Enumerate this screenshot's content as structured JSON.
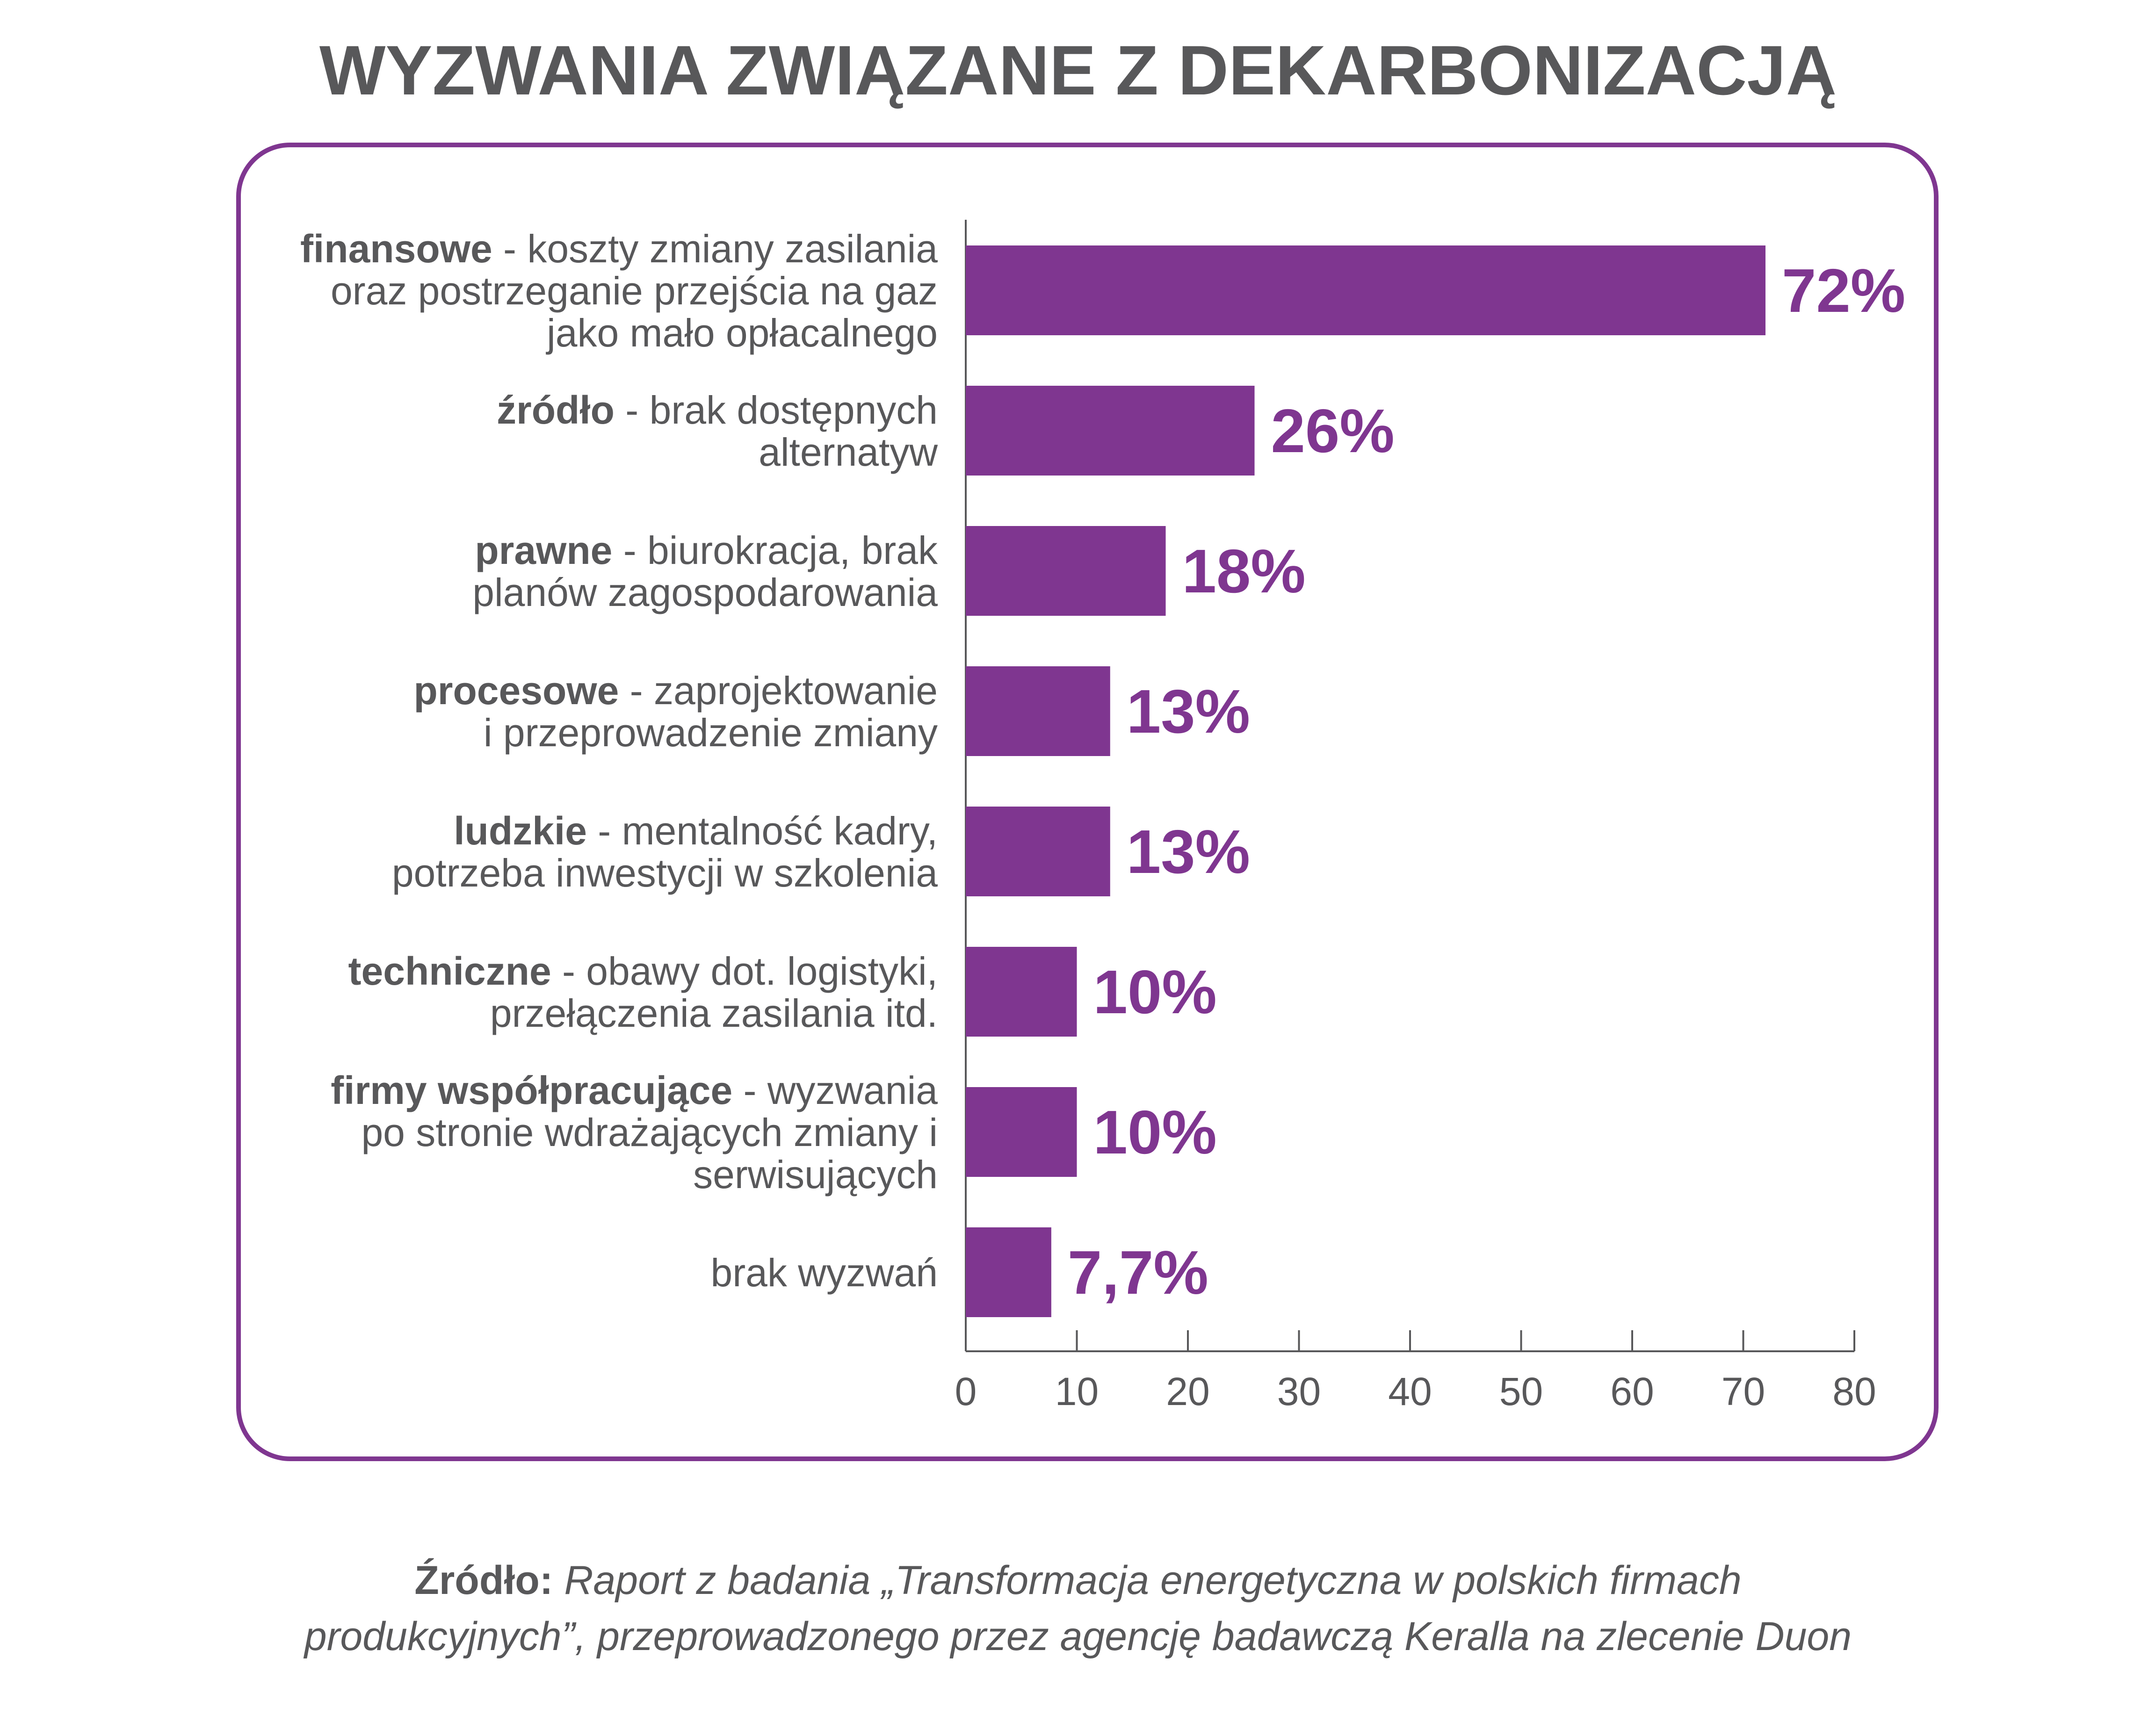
{
  "title": "WYZWANIA ZWIĄZANE Z DEKARBONIZACJĄ",
  "source": {
    "label": "Źródło:",
    "line1": "Raport z badania „Transformacja energetyczna w polskich firmach",
    "line2": "produkcyjnych”, przeprowadzonego przez agencję badawczą Keralla na zlecenie Duon"
  },
  "colors": {
    "bar": "#7f3690",
    "frame": "#7f3690",
    "text": "#58585a",
    "axis": "#58585a"
  },
  "chart_data": {
    "type": "bar",
    "orientation": "horizontal",
    "categories": [
      {
        "bold": "finansowe",
        "rest": " - koszty zmiany zasilania",
        "lines": [
          "oraz postrzeganie przejścia na gaz",
          "jako mało opłacalnego"
        ]
      },
      {
        "bold": "źródło",
        "rest": " - brak dostępnych",
        "lines": [
          "alternatyw"
        ]
      },
      {
        "bold": "prawne",
        "rest": " - biurokracja, brak",
        "lines": [
          "planów zagospodarowania"
        ]
      },
      {
        "bold": "procesowe",
        "rest": " - zaprojektowanie",
        "lines": [
          "i przeprowadzenie zmiany"
        ]
      },
      {
        "bold": "ludzkie",
        "rest": " - mentalność kadry,",
        "lines": [
          "potrzeba inwestycji w szkolenia"
        ]
      },
      {
        "bold": "techniczne",
        "rest": " - obawy dot. logistyki,",
        "lines": [
          "przełączenia zasilania itd."
        ]
      },
      {
        "bold": "firmy współpracujące",
        "rest": " - wyzwania",
        "lines": [
          "po stronie wdrażających zmiany i",
          "serwisujących"
        ]
      },
      {
        "bold": "",
        "rest": "brak wyzwań",
        "lines": []
      }
    ],
    "values": [
      72,
      26,
      18,
      13,
      13,
      10,
      10,
      7.7
    ],
    "value_labels": [
      "72%",
      "26%",
      "18%",
      "13%",
      "13%",
      "10%",
      "10%",
      "7,7%"
    ],
    "xlim": [
      0,
      80
    ],
    "xticks": [
      0,
      10,
      20,
      30,
      40,
      50,
      60,
      70,
      80
    ],
    "xtick_labels": [
      "0",
      "10",
      "20",
      "30",
      "40",
      "50",
      "60",
      "70",
      "80"
    ],
    "grid": false,
    "legend": "none"
  }
}
